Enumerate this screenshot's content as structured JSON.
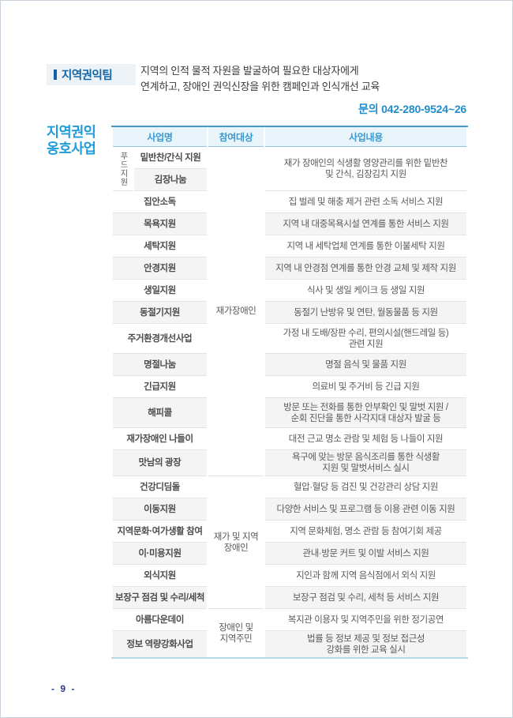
{
  "header": {
    "team_label": "지역권익팀",
    "team_description": "지역의 인적 물적 자원을 발굴하여 필요한 대상자에게\n연계하고, 장애인 권익신장을 위한 캠페인과 인식개선 교육",
    "contact": "문의  042-280-9524~26",
    "section_title": "지역권익\n옹호사업"
  },
  "table": {
    "columns": {
      "name": "사업명",
      "target": "참여대상",
      "content": "사업내용"
    },
    "food_group_label": "푸드지원",
    "food_group_content": "재가 장애인의 식생활 영양관리를 위한 밑반찬\n및 간식, 김장김치 지원",
    "targets": [
      "재가장애인",
      "재가 및 지역\n장애인",
      "장애인 및\n지역주민"
    ],
    "rows": [
      {
        "name": "밑반찬/간식 지원",
        "content": ""
      },
      {
        "name": "김장나눔",
        "content": ""
      },
      {
        "name": "집안소독",
        "content": "집 벌레 및 해충 제거 관련 소독 서비스 지원"
      },
      {
        "name": "목욕지원",
        "content": "지역 내 대중목욕시설 연계를 통한 서비스 지원"
      },
      {
        "name": "세탁지원",
        "content": "지역 내 세탁업체 연계를 통한 이불세탁 지원"
      },
      {
        "name": "안경지원",
        "content": "지역 내 안경점 연계를 통한 안경 교체 및 제작 지원"
      },
      {
        "name": "생일지원",
        "content": "식사 및 생일 케이크 등 생일 지원"
      },
      {
        "name": "동절기지원",
        "content": "동절기 난방유 및 연탄, 월동물품 등 지원"
      },
      {
        "name": "주거환경개선사업",
        "content": "가정 내 도배/장판 수리, 편의시설(핸드레일 등)\n관련 지원"
      },
      {
        "name": "명절나눔",
        "content": "명절 음식 및 물품 지원"
      },
      {
        "name": "긴급지원",
        "content": "의료비 및 주거비 등 긴급 지원"
      },
      {
        "name": "해피콜",
        "content": "방문 또는 전화를 통한 안부확인 및 말벗 지원 /\n순회 진단을 통한 사각지대 대상자 발굴 등"
      },
      {
        "name": "재가장애인 나들이",
        "content": "대전 근교 명소 관람 및 체험 등 나들이 지원"
      },
      {
        "name": "맛남의 광장",
        "content": "욕구에 맞는 방문 음식조리를 통한 식생활\n지원 및 말벗서비스 실시"
      },
      {
        "name": "건강디딤돌",
        "content": "혈압·혈당 등 검진 및 건강관리 상담 지원"
      },
      {
        "name": "이동지원",
        "content": "다양한 서비스 및 프로그램 등 이용 관련 이동 지원"
      },
      {
        "name": "지역문화·여가생활 참여",
        "content": "지역 문화체험, 명소 관람 등 참여기회 제공"
      },
      {
        "name": "이·미용지원",
        "content": "관내·방문 커트 및 이발 서비스 지원"
      },
      {
        "name": "외식지원",
        "content": "지인과 함께 지역 음식점에서 외식 지원"
      },
      {
        "name": "보장구 점검 및 수리/세척",
        "content": "보장구 점검 및 수리, 세척 등 서비스 지원"
      },
      {
        "name": "아름다운데이",
        "content": "복지관 이용자 및 지역주민을 위한 정기공연"
      },
      {
        "name": "정보 역량강화사업",
        "content": "법률 등 정보 제공 및 정보 접근성\n강화를 위한 교육 실시"
      }
    ]
  },
  "footer": {
    "page_number": "- 9 -"
  }
}
